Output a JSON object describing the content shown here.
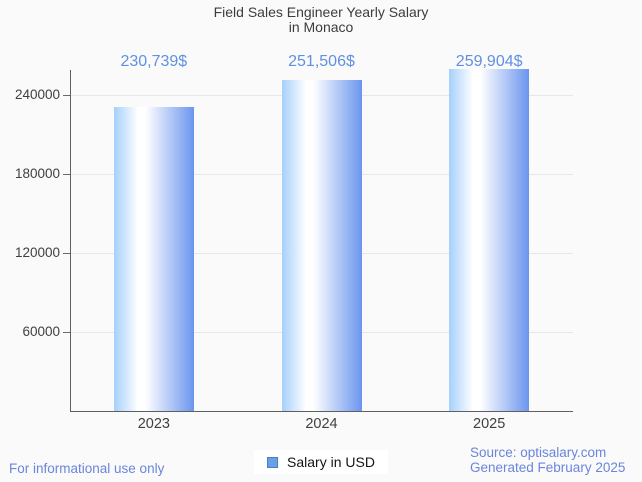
{
  "title": {
    "line1": "Field Sales Engineer Yearly Salary",
    "line2": "in Monaco"
  },
  "chart_data": {
    "type": "bar",
    "title": "Field Sales Engineer Yearly Salary in Monaco",
    "categories": [
      "2023",
      "2024",
      "2025"
    ],
    "values": [
      230739,
      251506,
      259904
    ],
    "value_labels": [
      "230,739$",
      "251,506$",
      "259,904$"
    ],
    "series_name": "Salary in USD",
    "xlabel": "",
    "ylabel": "",
    "ylim": [
      0,
      260000
    ],
    "yticks": [
      60000,
      120000,
      180000,
      240000
    ],
    "grid": true,
    "legend_position": "bottom",
    "bar_gradient": [
      "#a5d0fc",
      "#ffffff",
      "#6b95ee"
    ],
    "value_label_color": "#6090e2"
  },
  "legend": {
    "label": "Salary in USD",
    "marker_fill": "#68a0e8",
    "marker_border": "#4b7fc2"
  },
  "footer": {
    "disclaimer": "For informational use only",
    "source": "Source: optisalary.com",
    "generated": "Generated February 2025"
  },
  "colors": {
    "background": "#fafafa",
    "axis": "#5f5f5f",
    "gridline": "#e7e7e7",
    "title_text": "#3d3d3d",
    "tick_text": "#3f3f3f",
    "blue_text": "#6a85db"
  }
}
